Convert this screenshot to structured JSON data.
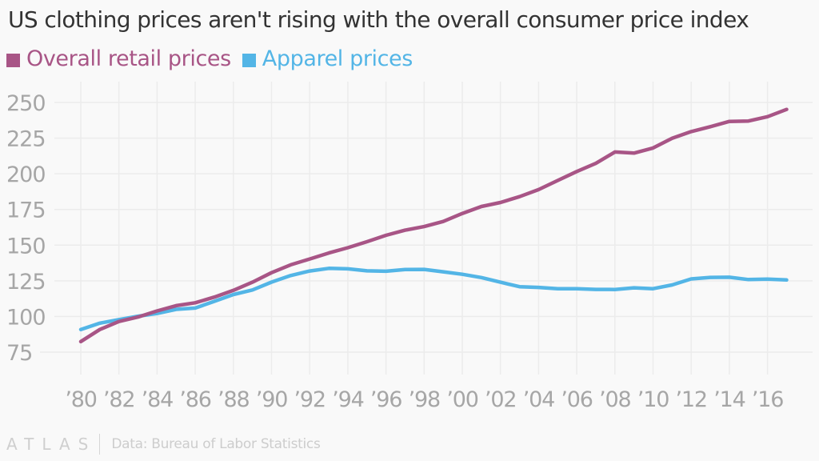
{
  "colors": {
    "overall": "#a85586",
    "apparel": "#53b5e6",
    "grid": "#ececec",
    "tick": "#a6a6a6"
  },
  "chart_data": {
    "type": "line",
    "title": "US clothing prices aren't rising with the overall consumer price index",
    "xlabel": "",
    "ylabel": "",
    "legend_position": "top-left",
    "grid": true,
    "x": [
      1980,
      1981,
      1982,
      1983,
      1984,
      1985,
      1986,
      1987,
      1988,
      1989,
      1990,
      1991,
      1992,
      1993,
      1994,
      1995,
      1996,
      1997,
      1998,
      1999,
      2000,
      2001,
      2002,
      2003,
      2004,
      2005,
      2006,
      2007,
      2008,
      2009,
      2010,
      2011,
      2012,
      2013,
      2014,
      2015,
      2016,
      2017
    ],
    "xlim": [
      1980,
      2018
    ],
    "ylim": [
      75,
      250
    ],
    "x_ticks": [
      1980,
      1982,
      1984,
      1986,
      1988,
      1990,
      1992,
      1994,
      1996,
      1998,
      2000,
      2002,
      2004,
      2006,
      2008,
      2010,
      2012,
      2014,
      2016
    ],
    "x_tick_labels": [
      "’80",
      "’82",
      "’84",
      "’86",
      "’88",
      "’90",
      "’92",
      "’94",
      "’96",
      "’98",
      "’00",
      "’02",
      "’04",
      "’06",
      "’08",
      "’10",
      "’12",
      "’14",
      "’16"
    ],
    "y_ticks": [
      75,
      100,
      125,
      150,
      175,
      200,
      225,
      250
    ],
    "y_tick_labels": [
      "75",
      "100",
      "125",
      "150",
      "175",
      "200",
      "225",
      "250"
    ],
    "series": [
      {
        "name": "Overall retail prices",
        "color": "#a85586",
        "values": [
          82.4,
          90.9,
          96.5,
          99.6,
          103.9,
          107.6,
          109.6,
          113.6,
          118.3,
          124.0,
          130.7,
          136.2,
          140.3,
          144.5,
          148.2,
          152.4,
          156.9,
          160.5,
          163.0,
          166.6,
          172.2,
          177.1,
          179.9,
          184.0,
          188.9,
          195.3,
          201.6,
          207.3,
          215.3,
          214.5,
          218.1,
          224.9,
          229.6,
          233.0,
          236.7,
          237.0,
          240.0,
          245.1
        ]
      },
      {
        "name": "Apparel prices",
        "color": "#53b5e6",
        "values": [
          90.9,
          95.3,
          97.8,
          100.2,
          102.1,
          105.0,
          105.9,
          110.6,
          115.4,
          118.6,
          124.1,
          128.7,
          131.9,
          133.7,
          133.4,
          132.0,
          131.7,
          132.9,
          133.0,
          131.3,
          129.6,
          127.3,
          124.0,
          120.9,
          120.4,
          119.5,
          119.5,
          119.0,
          118.9,
          120.1,
          119.5,
          122.1,
          126.3,
          127.4,
          127.5,
          125.9,
          126.2,
          125.6
        ]
      }
    ]
  },
  "footer": {
    "logo": "ATLAS",
    "source": "Data: Bureau of Labor Statistics"
  }
}
